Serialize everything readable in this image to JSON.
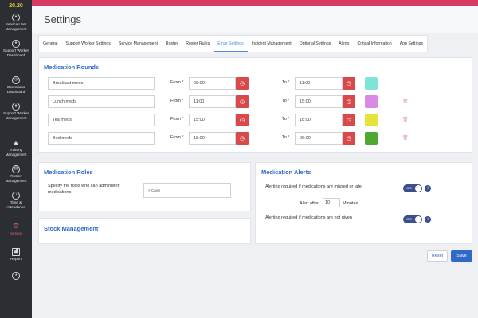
{
  "app": {
    "logo_text": "20.20",
    "page_title": "Settings"
  },
  "sidebar": {
    "items": [
      {
        "label": "Service User Management",
        "icon": "user-icon"
      },
      {
        "label": "Support Worker Dashboard",
        "icon": "users-icon"
      },
      {
        "label": "Operations Dashboard",
        "icon": "dashboard-icon"
      },
      {
        "label": "Support Worker Management",
        "icon": "worker-icon"
      },
      {
        "label": "Training Management",
        "icon": "graduation-cap-icon"
      },
      {
        "label": "Roster Management",
        "icon": "roster-icon"
      },
      {
        "label": "Time & Attendance",
        "icon": "clock-icon"
      },
      {
        "label": "Settings",
        "icon": "gear-icon",
        "active": true
      },
      {
        "label": "Report",
        "icon": "chart-icon"
      }
    ]
  },
  "tabs": [
    "General",
    "Support Worker Settings",
    "Service Management",
    "Roster",
    "Roster Rules",
    "Emar Settings",
    "Incident Management",
    "Optional Settings",
    "Alerts",
    "Critical Information",
    "App Settings"
  ],
  "active_tab": "Emar Settings",
  "medication_rounds": {
    "title": "Medication Rounds",
    "from_label": "From",
    "to_label": "To",
    "required_marker": "*",
    "rows": [
      {
        "name": "Breakfast meds",
        "from": "06:00",
        "to": "11:00",
        "color": "#7fe3d8",
        "deletable": false
      },
      {
        "name": "Lunch meds",
        "from": "11:00",
        "to": "15:00",
        "color": "#d98be3",
        "deletable": true
      },
      {
        "name": "Tea meds",
        "from": "15:00",
        "to": "18:00",
        "color": "#e4e43a",
        "deletable": true
      },
      {
        "name": "Bed meds",
        "from": "18:00",
        "to": "06:00",
        "color": "#4fa830",
        "deletable": true
      }
    ]
  },
  "medication_roles": {
    "title": "Medication Roles",
    "description": "Specify the roles who can administer medications",
    "selected_tag": "Carer",
    "tag_remove": "×"
  },
  "stock_management": {
    "title": "Stock Management"
  },
  "medication_alerts": {
    "title": "Medication Alerts",
    "missed_label": "Alerting required if medications are missed or late",
    "missed_toggle": "YES",
    "alert_after_label": "Alert after:",
    "alert_after_value": "10",
    "alert_after_unit": "Minutes",
    "not_given_label": "Alerting required if medications are not given",
    "not_given_toggle": "YES"
  },
  "actions": {
    "reset_label": "Reset",
    "save_label": "Save"
  },
  "colors": {
    "accent": "#d63b62",
    "primary": "#2f6ac8",
    "clock_button": "#d84a4a",
    "toggle": "#3d4e8c",
    "save": "#2f6ac8"
  }
}
